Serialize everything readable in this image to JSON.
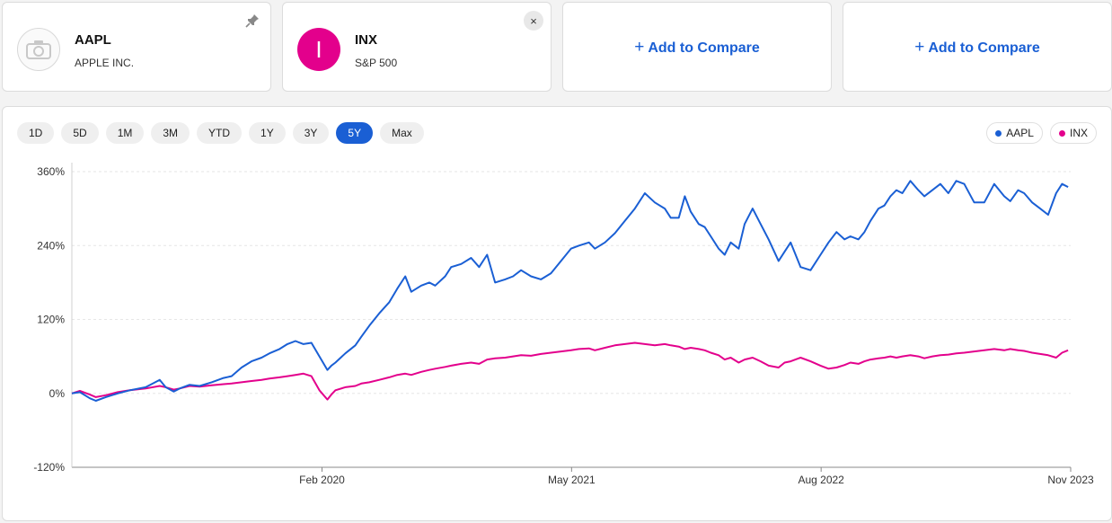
{
  "compare": {
    "aapl": {
      "symbol": "AAPL",
      "name": "APPLE INC."
    },
    "inx": {
      "symbol": "INX",
      "name": "S&P 500",
      "avatar_letter": "I",
      "avatar_color": "#e3008c"
    },
    "add_label": "Add to Compare",
    "add_icon": "+",
    "close_icon": "×"
  },
  "icons": {
    "aapl_avatar": "camera-placeholder-icon",
    "pin": "pin-icon",
    "close": "close-icon"
  },
  "ranges": [
    "1D",
    "5D",
    "1M",
    "3M",
    "YTD",
    "1Y",
    "3Y",
    "5Y",
    "Max"
  ],
  "active_range": "5Y",
  "legend": [
    {
      "label": "AAPL",
      "color": "#1a5fd4"
    },
    {
      "label": "INX",
      "color": "#e3008c"
    }
  ],
  "chart_data": {
    "type": "line",
    "y_ticks": [
      "360%",
      "240%",
      "120%",
      "0%",
      "-120%"
    ],
    "y_tick_values": [
      360,
      240,
      120,
      0,
      -120
    ],
    "ylim": [
      -120,
      360
    ],
    "x_ticks": [
      "Feb 2020",
      "May 2021",
      "Aug 2022",
      "Nov 2023"
    ],
    "x_tick_values": [
      2020.083,
      2021.333,
      2022.583,
      2023.833
    ],
    "xlim": [
      2018.83,
      2023.833
    ],
    "grid": true,
    "legend_position": "top-right",
    "series": [
      {
        "name": "AAPL",
        "color": "#1a5fd4",
        "x": [
          2018.83,
          2018.87,
          2018.92,
          2018.95,
          2019.0,
          2019.06,
          2019.12,
          2019.2,
          2019.27,
          2019.3,
          2019.34,
          2019.37,
          2019.42,
          2019.47,
          2019.53,
          2019.59,
          2019.63,
          2019.68,
          2019.73,
          2019.78,
          2019.82,
          2019.87,
          2019.91,
          2019.95,
          2019.99,
          2020.03,
          2020.07,
          2020.11,
          2020.13,
          2020.15,
          2020.2,
          2020.25,
          2020.28,
          2020.32,
          2020.37,
          2020.42,
          2020.46,
          2020.5,
          2020.53,
          2020.58,
          2020.62,
          2020.65,
          2020.7,
          2020.73,
          2020.78,
          2020.83,
          2020.87,
          2020.91,
          2020.95,
          2021.0,
          2021.04,
          2021.08,
          2021.13,
          2021.18,
          2021.23,
          2021.28,
          2021.33,
          2021.37,
          2021.42,
          2021.45,
          2021.5,
          2021.55,
          2021.6,
          2021.65,
          2021.7,
          2021.75,
          2021.8,
          2021.83,
          2021.87,
          2021.9,
          2021.93,
          2021.97,
          2022.0,
          2022.03,
          2022.07,
          2022.1,
          2022.13,
          2022.17,
          2022.2,
          2022.24,
          2022.28,
          2022.32,
          2022.37,
          2022.4,
          2022.43,
          2022.48,
          2022.53,
          2022.58,
          2022.62,
          2022.66,
          2022.7,
          2022.73,
          2022.77,
          2022.8,
          2022.83,
          2022.87,
          2022.9,
          2022.93,
          2022.96,
          2022.99,
          2023.03,
          2023.07,
          2023.1,
          2023.14,
          2023.18,
          2023.22,
          2023.26,
          2023.3,
          2023.35,
          2023.4,
          2023.45,
          2023.5,
          2023.53,
          2023.57,
          2023.6,
          2023.64,
          2023.68,
          2023.72,
          2023.76,
          2023.79,
          2023.82
        ],
        "values": [
          0,
          2,
          -8,
          -12,
          -6,
          0,
          5,
          10,
          22,
          10,
          3,
          8,
          14,
          12,
          18,
          25,
          28,
          42,
          52,
          58,
          65,
          72,
          80,
          85,
          80,
          82,
          60,
          38,
          45,
          50,
          65,
          78,
          92,
          110,
          130,
          148,
          170,
          190,
          165,
          175,
          180,
          175,
          190,
          205,
          210,
          220,
          205,
          225,
          180,
          185,
          190,
          200,
          190,
          185,
          195,
          215,
          235,
          240,
          245,
          235,
          245,
          260,
          280,
          300,
          325,
          310,
          300,
          285,
          285,
          320,
          295,
          275,
          270,
          255,
          235,
          225,
          245,
          235,
          275,
          300,
          275,
          250,
          215,
          230,
          245,
          205,
          200,
          225,
          245,
          262,
          250,
          255,
          250,
          262,
          280,
          300,
          305,
          320,
          330,
          325,
          345,
          330,
          320,
          330,
          340,
          325,
          345,
          340,
          310,
          310,
          340,
          320,
          312,
          330,
          325,
          310,
          300,
          290,
          325,
          340,
          335
        ]
      },
      {
        "name": "INX",
        "color": "#e3008c",
        "x": [
          2018.83,
          2018.87,
          2018.92,
          2018.95,
          2019.0,
          2019.06,
          2019.12,
          2019.2,
          2019.27,
          2019.3,
          2019.34,
          2019.37,
          2019.42,
          2019.47,
          2019.53,
          2019.59,
          2019.63,
          2019.68,
          2019.73,
          2019.78,
          2019.82,
          2019.87,
          2019.91,
          2019.95,
          2019.99,
          2020.03,
          2020.07,
          2020.11,
          2020.13,
          2020.15,
          2020.2,
          2020.25,
          2020.28,
          2020.32,
          2020.37,
          2020.42,
          2020.46,
          2020.5,
          2020.53,
          2020.58,
          2020.62,
          2020.65,
          2020.7,
          2020.73,
          2020.78,
          2020.83,
          2020.87,
          2020.91,
          2020.95,
          2021.0,
          2021.04,
          2021.08,
          2021.13,
          2021.18,
          2021.23,
          2021.28,
          2021.33,
          2021.37,
          2021.42,
          2021.45,
          2021.5,
          2021.55,
          2021.6,
          2021.65,
          2021.7,
          2021.75,
          2021.8,
          2021.83,
          2021.87,
          2021.9,
          2021.93,
          2021.97,
          2022.0,
          2022.03,
          2022.07,
          2022.1,
          2022.13,
          2022.17,
          2022.2,
          2022.24,
          2022.28,
          2022.32,
          2022.37,
          2022.4,
          2022.43,
          2022.48,
          2022.53,
          2022.58,
          2022.62,
          2022.66,
          2022.7,
          2022.73,
          2022.77,
          2022.8,
          2022.83,
          2022.87,
          2022.9,
          2022.93,
          2022.96,
          2022.99,
          2023.03,
          2023.07,
          2023.1,
          2023.14,
          2023.18,
          2023.22,
          2023.26,
          2023.3,
          2023.35,
          2023.4,
          2023.45,
          2023.5,
          2023.53,
          2023.57,
          2023.6,
          2023.64,
          2023.68,
          2023.72,
          2023.76,
          2023.79,
          2023.82
        ],
        "values": [
          0,
          4,
          -2,
          -6,
          -3,
          2,
          5,
          8,
          12,
          10,
          6,
          8,
          12,
          11,
          13,
          15,
          16,
          18,
          20,
          22,
          24,
          26,
          28,
          30,
          32,
          28,
          5,
          -10,
          -2,
          5,
          10,
          12,
          16,
          18,
          22,
          26,
          30,
          32,
          30,
          35,
          38,
          40,
          43,
          45,
          48,
          50,
          48,
          55,
          57,
          58,
          60,
          62,
          61,
          64,
          66,
          68,
          70,
          72,
          73,
          70,
          74,
          78,
          80,
          82,
          80,
          78,
          80,
          78,
          76,
          72,
          74,
          72,
          70,
          66,
          62,
          55,
          58,
          50,
          55,
          58,
          52,
          45,
          42,
          50,
          52,
          58,
          52,
          45,
          40,
          42,
          46,
          50,
          48,
          52,
          55,
          57,
          58,
          60,
          58,
          60,
          62,
          60,
          57,
          60,
          62,
          63,
          65,
          66,
          68,
          70,
          72,
          70,
          72,
          70,
          69,
          66,
          64,
          62,
          58,
          66,
          70
        ]
      }
    ]
  }
}
